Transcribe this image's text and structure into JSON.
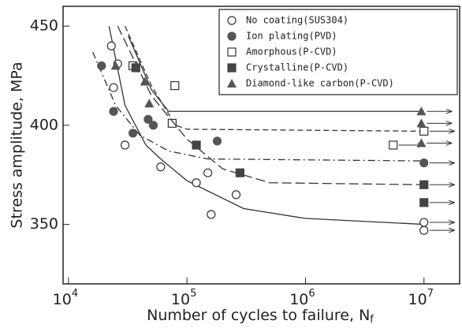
{
  "chart_data": {
    "type": "scatter",
    "xlabel": "Number of cycles to failure, N",
    "xlabel_sub": "f",
    "ylabel": "Stress amplitude, MPa",
    "xscale": "log",
    "xlim": [
      9000,
      20000000
    ],
    "ylim": [
      320,
      460
    ],
    "xticks": [
      {
        "value": 10000,
        "label": "10",
        "sup": "4"
      },
      {
        "value": 100000,
        "label": "10",
        "sup": "5"
      },
      {
        "value": 1000000,
        "label": "10",
        "sup": "6"
      },
      {
        "value": 10000000,
        "label": "10",
        "sup": "7"
      }
    ],
    "yticks": [
      350,
      400,
      450
    ],
    "legend": "top-right",
    "series": [
      {
        "name": "No  coating(SUS304)",
        "marker": "circle-open",
        "color": "#333",
        "line": "solid",
        "x": [
          23000,
          24000,
          26000,
          30000,
          60000,
          120000,
          150000,
          160000,
          260000,
          10000000,
          10000000
        ],
        "values": [
          440,
          419,
          431,
          390,
          379,
          371,
          376,
          355,
          365,
          351,
          347
        ],
        "runout": [
          false,
          false,
          false,
          false,
          false,
          false,
          false,
          false,
          false,
          true,
          true
        ],
        "curve": {
          "x": [
            22000,
            30000,
            45000,
            60000,
            100000,
            300000,
            1000000,
            10000000
          ],
          "y": [
            450,
            410,
            390,
            383,
            372,
            358,
            353,
            350
          ]
        }
      },
      {
        "name": "Ion plating(PVD)",
        "marker": "circle-filled",
        "color": "#555",
        "line": "dashdot",
        "x": [
          19000,
          24000,
          35000,
          47000,
          52000,
          180000,
          10000000
        ],
        "values": [
          430,
          407,
          396,
          403,
          400,
          392,
          381
        ],
        "runout": [
          false,
          false,
          false,
          false,
          false,
          false,
          true
        ],
        "curve": {
          "x": [
            16000,
            25000,
            40000,
            70000,
            150000,
            10000000
          ],
          "y": [
            437,
            410,
            395,
            387,
            383,
            382
          ]
        }
      },
      {
        "name": "Amorphous(P-CVD)",
        "marker": "square-open",
        "color": "#333",
        "line": "dashed",
        "x": [
          35000,
          79000,
          75000,
          5500000,
          10000000
        ],
        "values": [
          430,
          420,
          401,
          390,
          397
        ],
        "runout": [
          false,
          false,
          false,
          true,
          true
        ],
        "curve": {
          "x": [
            30000,
            50000,
            80000,
            100000,
            10000000
          ],
          "y": [
            450,
            420,
            400,
            398,
            397
          ]
        }
      },
      {
        "name": "Crystalline(P-CVD)",
        "marker": "square-x",
        "color": "#444",
        "line": "longdash",
        "x": [
          37000,
          120000,
          280000,
          10000000,
          10000000
        ],
        "values": [
          429,
          390,
          376,
          370,
          361
        ],
        "runout": [
          false,
          false,
          false,
          true,
          true
        ],
        "curve": {
          "x": [
            26000,
            50000,
            100000,
            200000,
            500000,
            10000000
          ],
          "y": [
            450,
            415,
            393,
            378,
            371,
            370
          ]
        }
      },
      {
        "name": "Diamond-like carbon(P-CVD)",
        "marker": "triangle",
        "color": "#555",
        "line": "solid",
        "x": [
          25000,
          44000,
          48000,
          9500000,
          9500000,
          9500000
        ],
        "values": [
          430,
          422,
          411,
          407,
          401,
          391
        ],
        "runout": [
          false,
          false,
          false,
          true,
          true,
          true
        ],
        "curve": {
          "x": [
            32000,
            50000,
            70000,
            10000000
          ],
          "y": [
            445,
            418,
            407,
            407
          ]
        }
      }
    ]
  }
}
